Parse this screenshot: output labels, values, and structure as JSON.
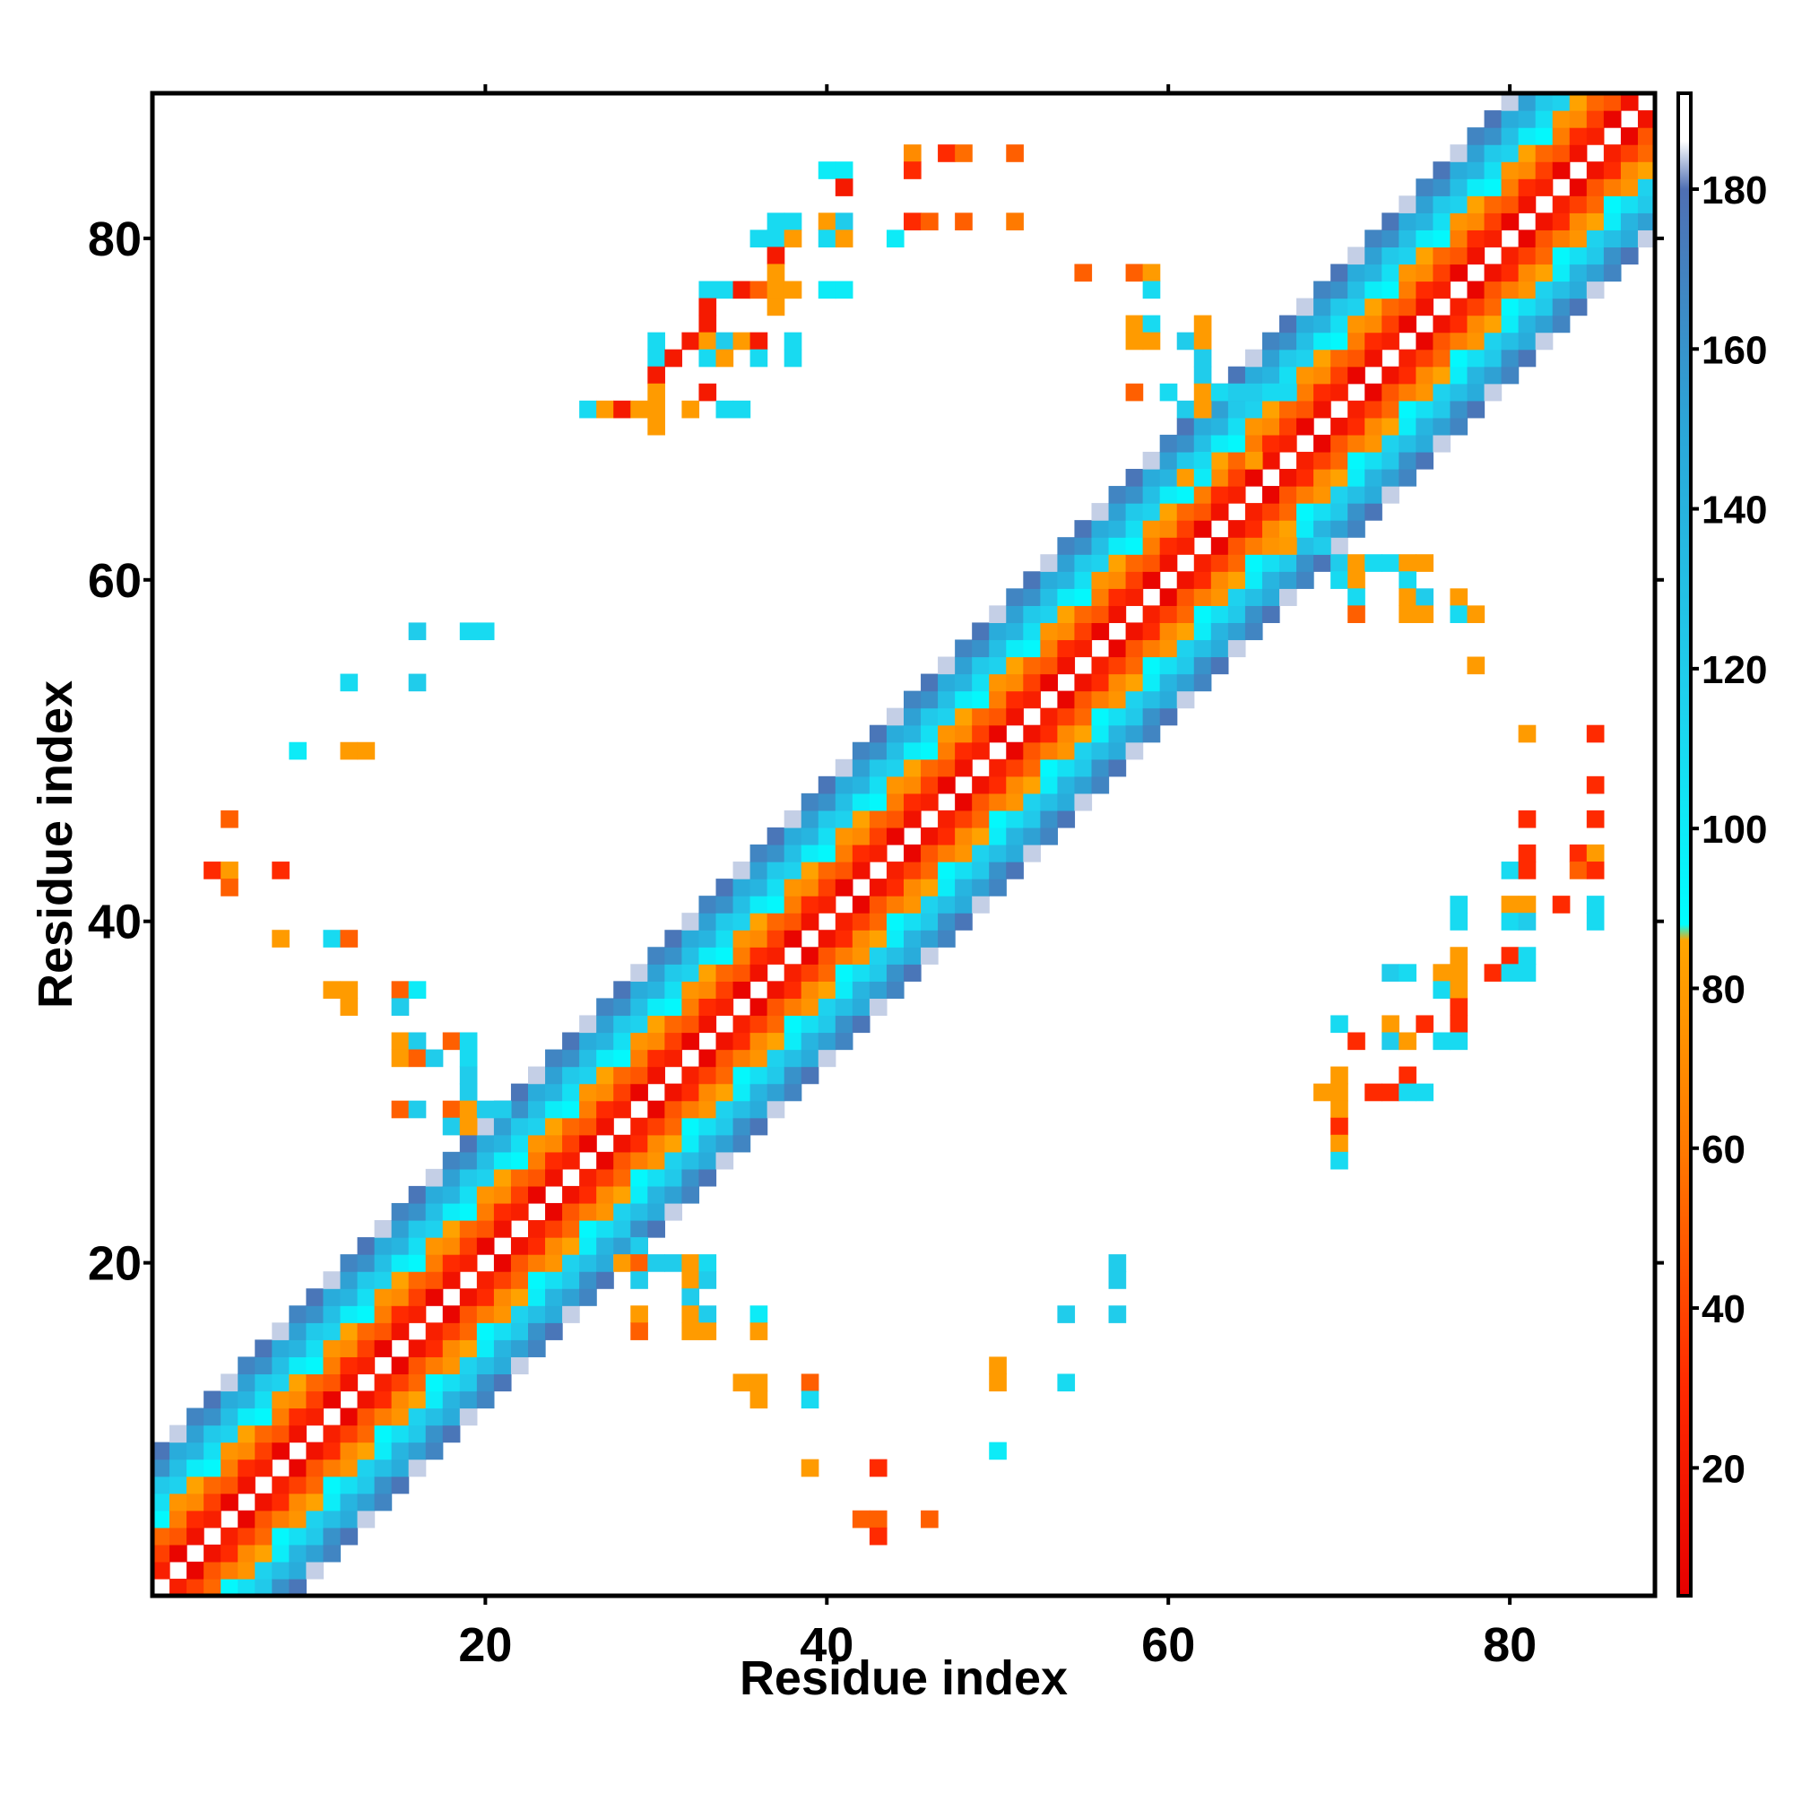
{
  "chart_data": {
    "type": "heatmap",
    "title": "",
    "xlabel": "Residue index",
    "ylabel": "Residue index",
    "xlim": [
      0.5,
      88.5
    ],
    "ylim": [
      0.5,
      88.5
    ],
    "x_ticks": [
      20,
      40,
      60,
      80
    ],
    "y_ticks": [
      20,
      40,
      60,
      80
    ],
    "colorbar": {
      "range": [
        4,
        192
      ],
      "ticks": [
        20,
        40,
        60,
        80,
        100,
        120,
        140,
        160,
        180
      ],
      "stops": [
        {
          "value": 4,
          "color": "#e60000"
        },
        {
          "value": 30,
          "color": "#ff2a00"
        },
        {
          "value": 60,
          "color": "#ff7a00"
        },
        {
          "value": 86,
          "color": "#ffa500"
        },
        {
          "value": 88,
          "color": "#00ffff"
        },
        {
          "value": 115,
          "color": "#1ed2ee"
        },
        {
          "value": 150,
          "color": "#2ba6d8"
        },
        {
          "value": 180,
          "color": "#4f6fb3"
        },
        {
          "value": 186,
          "color": "#ffffff"
        },
        {
          "value": 192,
          "color": "#ffffff"
        }
      ]
    },
    "band_rule": "for every residue pair with 1 <= |i - j| <= 8, value = 23 * |i - j| - 8 * ((i + j) % 3); white on the diagonal",
    "cells": [
      [
        45,
        85,
        70
      ],
      [
        47,
        85,
        30
      ],
      [
        48,
        85,
        55
      ],
      [
        51,
        85,
        50
      ],
      [
        40,
        84,
        100
      ],
      [
        41,
        84,
        100
      ],
      [
        45,
        84,
        30
      ],
      [
        41,
        83,
        20
      ],
      [
        37,
        81,
        110
      ],
      [
        38,
        81,
        110
      ],
      [
        40,
        81,
        80
      ],
      [
        41,
        81,
        120
      ],
      [
        45,
        81,
        30
      ],
      [
        46,
        81,
        50
      ],
      [
        48,
        81,
        50
      ],
      [
        51,
        81,
        60
      ],
      [
        36,
        80,
        110
      ],
      [
        37,
        80,
        110
      ],
      [
        38,
        80,
        80
      ],
      [
        40,
        80,
        110
      ],
      [
        41,
        80,
        80
      ],
      [
        44,
        80,
        100
      ],
      [
        37,
        79,
        20
      ],
      [
        37,
        78,
        80
      ],
      [
        55,
        78,
        50
      ],
      [
        58,
        78,
        50
      ],
      [
        59,
        78,
        80
      ],
      [
        33,
        77,
        110
      ],
      [
        34,
        77,
        110
      ],
      [
        35,
        77,
        20
      ],
      [
        36,
        77,
        50
      ],
      [
        37,
        77,
        80
      ],
      [
        38,
        77,
        80
      ],
      [
        40,
        77,
        100
      ],
      [
        41,
        77,
        100
      ],
      [
        59,
        77,
        110
      ],
      [
        33,
        76,
        20
      ],
      [
        37,
        76,
        80
      ],
      [
        33,
        75,
        20
      ],
      [
        58,
        75,
        80
      ],
      [
        59,
        75,
        110
      ],
      [
        62,
        75,
        80
      ],
      [
        30,
        74,
        110
      ],
      [
        32,
        74,
        20
      ],
      [
        33,
        74,
        80
      ],
      [
        34,
        74,
        120
      ],
      [
        35,
        74,
        80
      ],
      [
        36,
        74,
        20
      ],
      [
        38,
        74,
        110
      ],
      [
        58,
        74,
        80
      ],
      [
        59,
        74,
        80
      ],
      [
        61,
        74,
        120
      ],
      [
        62,
        74,
        80
      ],
      [
        30,
        73,
        110
      ],
      [
        31,
        73,
        20
      ],
      [
        33,
        73,
        110
      ],
      [
        34,
        73,
        80
      ],
      [
        36,
        73,
        110
      ],
      [
        38,
        73,
        110
      ],
      [
        62,
        73,
        120
      ],
      [
        30,
        72,
        20
      ],
      [
        62,
        72,
        120
      ],
      [
        30,
        71,
        80
      ],
      [
        33,
        71,
        20
      ],
      [
        58,
        71,
        50
      ],
      [
        60,
        71,
        110
      ],
      [
        62,
        71,
        80
      ],
      [
        63,
        71,
        110
      ],
      [
        64,
        71,
        120
      ],
      [
        65,
        71,
        120
      ],
      [
        66,
        71,
        110
      ],
      [
        67,
        71,
        110
      ],
      [
        26,
        70,
        110
      ],
      [
        27,
        70,
        80
      ],
      [
        28,
        70,
        20
      ],
      [
        29,
        70,
        80
      ],
      [
        30,
        70,
        80
      ],
      [
        32,
        70,
        80
      ],
      [
        34,
        70,
        110
      ],
      [
        35,
        70,
        110
      ],
      [
        61,
        70,
        120
      ],
      [
        62,
        70,
        80
      ],
      [
        30,
        69,
        80
      ],
      [
        62,
        67,
        110
      ],
      [
        65,
        67,
        80
      ],
      [
        61,
        66,
        80
      ],
      [
        62,
        66,
        100
      ],
      [
        67,
        62,
        80
      ],
      [
        69,
        62,
        120
      ],
      [
        70,
        61,
        120
      ],
      [
        71,
        61,
        80
      ],
      [
        72,
        61,
        110
      ],
      [
        73,
        61,
        110
      ],
      [
        74,
        61,
        80
      ],
      [
        75,
        61,
        80
      ],
      [
        70,
        60,
        110
      ],
      [
        71,
        60,
        80
      ],
      [
        74,
        60,
        110
      ],
      [
        71,
        59,
        110
      ],
      [
        74,
        59,
        80
      ],
      [
        75,
        59,
        120
      ],
      [
        77,
        59,
        80
      ],
      [
        71,
        58,
        50
      ],
      [
        74,
        58,
        80
      ],
      [
        75,
        58,
        80
      ],
      [
        77,
        58,
        110
      ],
      [
        78,
        58,
        80
      ],
      [
        16,
        57,
        120
      ],
      [
        19,
        57,
        110
      ],
      [
        20,
        57,
        110
      ],
      [
        78,
        55,
        80
      ],
      [
        12,
        54,
        110
      ],
      [
        16,
        54,
        120
      ],
      [
        81,
        51,
        80
      ],
      [
        85,
        51,
        30
      ],
      [
        9,
        50,
        100
      ],
      [
        12,
        50,
        80
      ],
      [
        13,
        50,
        80
      ],
      [
        85,
        48,
        30
      ],
      [
        5,
        46,
        50
      ],
      [
        81,
        46,
        30
      ],
      [
        85,
        46,
        30
      ],
      [
        81,
        44,
        30
      ],
      [
        84,
        44,
        30
      ],
      [
        85,
        44,
        80
      ],
      [
        4,
        43,
        30
      ],
      [
        5,
        43,
        80
      ],
      [
        8,
        43,
        30
      ],
      [
        80,
        43,
        110
      ],
      [
        81,
        43,
        30
      ],
      [
        84,
        43,
        50
      ],
      [
        85,
        43,
        30
      ],
      [
        5,
        42,
        50
      ],
      [
        77,
        41,
        110
      ],
      [
        80,
        41,
        80
      ],
      [
        81,
        41,
        80
      ],
      [
        83,
        41,
        30
      ],
      [
        85,
        41,
        110
      ],
      [
        77,
        40,
        110
      ],
      [
        80,
        40,
        110
      ],
      [
        81,
        40,
        120
      ],
      [
        85,
        40,
        110
      ],
      [
        8,
        39,
        80
      ],
      [
        11,
        39,
        110
      ],
      [
        12,
        39,
        50
      ],
      [
        77,
        38,
        80
      ],
      [
        80,
        38,
        30
      ],
      [
        81,
        38,
        110
      ],
      [
        73,
        37,
        120
      ],
      [
        74,
        37,
        110
      ],
      [
        76,
        37,
        80
      ],
      [
        77,
        37,
        80
      ],
      [
        79,
        37,
        30
      ],
      [
        80,
        37,
        110
      ],
      [
        81,
        37,
        110
      ],
      [
        11,
        36,
        80
      ],
      [
        12,
        36,
        80
      ],
      [
        15,
        36,
        50
      ],
      [
        16,
        36,
        100
      ],
      [
        76,
        36,
        110
      ],
      [
        77,
        36,
        80
      ],
      [
        12,
        35,
        80
      ],
      [
        15,
        35,
        120
      ],
      [
        77,
        35,
        30
      ],
      [
        70,
        34,
        110
      ],
      [
        73,
        34,
        80
      ],
      [
        75,
        34,
        30
      ],
      [
        77,
        34,
        30
      ],
      [
        15,
        33,
        80
      ],
      [
        16,
        33,
        120
      ],
      [
        18,
        33,
        50
      ],
      [
        19,
        33,
        110
      ],
      [
        71,
        33,
        30
      ],
      [
        73,
        33,
        120
      ],
      [
        74,
        33,
        80
      ],
      [
        76,
        33,
        110
      ],
      [
        77,
        33,
        110
      ],
      [
        15,
        32,
        80
      ],
      [
        16,
        32,
        50
      ],
      [
        17,
        32,
        120
      ],
      [
        19,
        32,
        110
      ],
      [
        19,
        31,
        120
      ],
      [
        70,
        31,
        80
      ],
      [
        74,
        31,
        30
      ],
      [
        19,
        30,
        120
      ],
      [
        69,
        30,
        80
      ],
      [
        70,
        30,
        80
      ],
      [
        72,
        30,
        30
      ],
      [
        73,
        30,
        30
      ],
      [
        74,
        30,
        110
      ],
      [
        75,
        30,
        110
      ],
      [
        15,
        29,
        50
      ],
      [
        16,
        29,
        120
      ],
      [
        18,
        29,
        50
      ],
      [
        19,
        29,
        80
      ],
      [
        20,
        29,
        120
      ],
      [
        21,
        29,
        120
      ],
      [
        70,
        29,
        80
      ],
      [
        18,
        28,
        120
      ],
      [
        19,
        28,
        80
      ],
      [
        70,
        28,
        30
      ],
      [
        70,
        27,
        80
      ],
      [
        70,
        26,
        110
      ],
      [
        29,
        21,
        120
      ],
      [
        28,
        20,
        80
      ],
      [
        29,
        20,
        50
      ],
      [
        30,
        20,
        120
      ],
      [
        31,
        20,
        120
      ],
      [
        32,
        20,
        80
      ],
      [
        33,
        20,
        110
      ],
      [
        57,
        20,
        120
      ],
      [
        29,
        19,
        120
      ],
      [
        32,
        19,
        80
      ],
      [
        33,
        19,
        120
      ],
      [
        57,
        19,
        120
      ],
      [
        32,
        18,
        120
      ],
      [
        29,
        17,
        80
      ],
      [
        32,
        17,
        80
      ],
      [
        33,
        17,
        120
      ],
      [
        36,
        17,
        100
      ],
      [
        54,
        17,
        120
      ],
      [
        57,
        17,
        120
      ],
      [
        29,
        16,
        50
      ],
      [
        32,
        16,
        80
      ],
      [
        33,
        16,
        80
      ],
      [
        36,
        16,
        80
      ],
      [
        50,
        14,
        80
      ],
      [
        35,
        13,
        80
      ],
      [
        36,
        13,
        80
      ],
      [
        39,
        13,
        50
      ],
      [
        50,
        13,
        80
      ],
      [
        54,
        13,
        110
      ],
      [
        36,
        12,
        80
      ],
      [
        39,
        12,
        110
      ],
      [
        50,
        9,
        100
      ],
      [
        39,
        8,
        80
      ],
      [
        43,
        8,
        30
      ],
      [
        42,
        5,
        50
      ],
      [
        43,
        5,
        50
      ],
      [
        46,
        5,
        50
      ],
      [
        43,
        4,
        30
      ]
    ]
  }
}
